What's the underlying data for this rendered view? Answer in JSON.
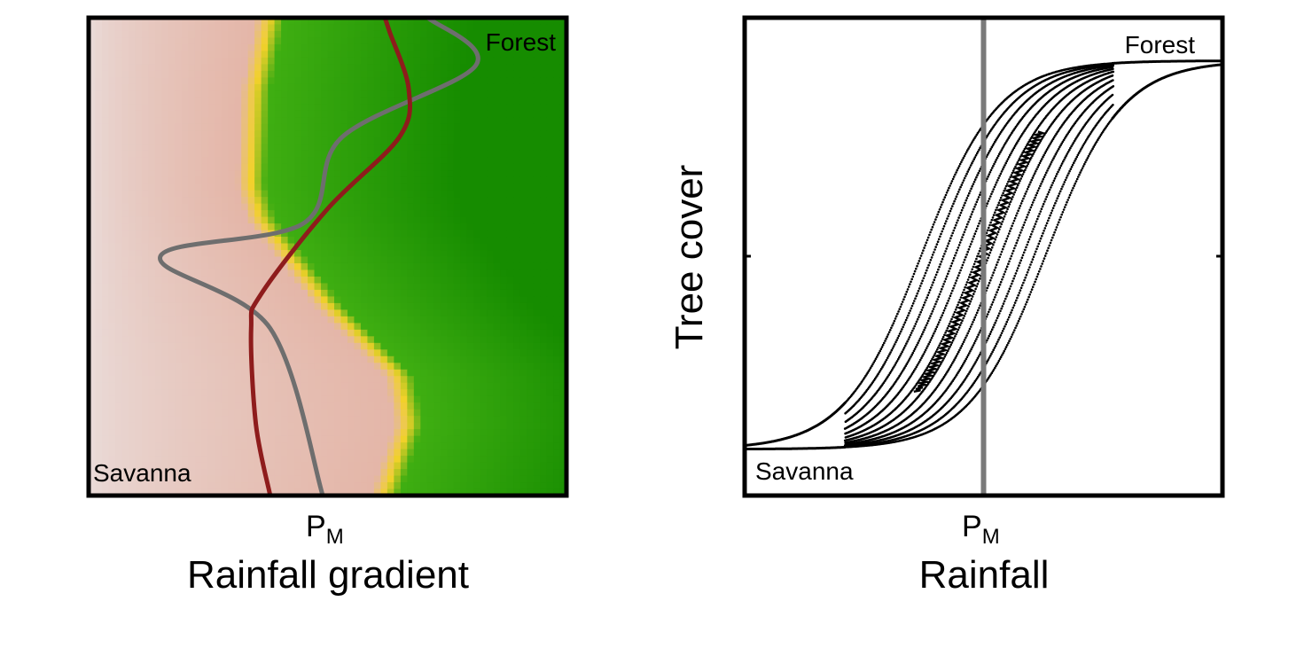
{
  "chart_data": [
    {
      "type": "heatmap",
      "title": "",
      "xlabel": "Rainfall gradient",
      "ylabel": "",
      "x_tick_label": {
        "main": "P",
        "subscript": "M"
      },
      "annotations": {
        "top_right": "Forest",
        "bottom_left": "Savanna"
      },
      "colors": {
        "savanna_light": "#eadddb",
        "savanna": "#e4b6a8",
        "boundary": "#f2d12a",
        "forest_light": "#3fae12",
        "forest": "#168c00",
        "grey_curve": "#6e6e6e",
        "red_curve": "#8e1c1c"
      },
      "series": [
        {
          "style": "grey",
          "points": [
            [
              0.49,
              0.0
            ],
            [
              0.38,
              0.35
            ],
            [
              0.15,
              0.5
            ],
            [
              0.45,
              0.57
            ],
            [
              0.53,
              0.75
            ],
            [
              0.81,
              0.9
            ],
            [
              0.71,
              1.0
            ]
          ]
        },
        {
          "style": "red",
          "points": [
            [
              0.38,
              0.0
            ],
            [
              0.35,
              0.15
            ],
            [
              0.34,
              0.35
            ],
            [
              0.36,
              0.42
            ],
            [
              0.5,
              0.6
            ],
            [
              0.65,
              0.75
            ],
            [
              0.67,
              0.85
            ],
            [
              0.63,
              0.97
            ],
            [
              0.62,
              1.0
            ]
          ]
        }
      ]
    },
    {
      "type": "scatter",
      "title": "",
      "xlabel": "Rainfall",
      "ylabel": "Tree cover",
      "x_tick_label": {
        "main": "P",
        "subscript": "M"
      },
      "annotations": {
        "top_right": "Forest",
        "bottom_left": "Savanna"
      },
      "xlim": [
        0,
        1
      ],
      "ylim": [
        0,
        1
      ],
      "vline_x": 0.5,
      "colors": {
        "points": "#000000",
        "vline": "#7a7a7a"
      },
      "sigmoid": {
        "low": 0.097,
        "high": 0.91,
        "slope": 12.5,
        "center_min": 0.37,
        "center_max": 0.63
      },
      "scatter_x_range": [
        0.21,
        0.77
      ],
      "n_curves": 12
    }
  ]
}
